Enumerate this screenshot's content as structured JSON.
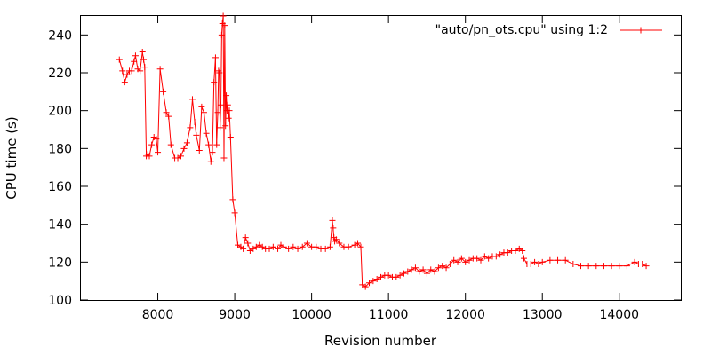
{
  "chart_data": {
    "type": "line",
    "title": "",
    "xlabel": "Revision number",
    "ylabel": "CPU time (s)",
    "xlim": [
      7000,
      14800
    ],
    "ylim": [
      100,
      250
    ],
    "xticks": [
      8000,
      9000,
      10000,
      11000,
      12000,
      13000,
      14000
    ],
    "yticks": [
      100,
      120,
      140,
      160,
      180,
      200,
      220,
      240
    ],
    "grid": false,
    "legend_position": "top-right",
    "series": [
      {
        "name": "\"auto/pn_ots.cpu\" using 1:2",
        "color": "#ff0000",
        "marker": "plus",
        "points": [
          [
            7500,
            227
          ],
          [
            7540,
            221
          ],
          [
            7570,
            215
          ],
          [
            7600,
            219
          ],
          [
            7630,
            221
          ],
          [
            7660,
            221
          ],
          [
            7690,
            226
          ],
          [
            7710,
            229
          ],
          [
            7740,
            222
          ],
          [
            7770,
            221
          ],
          [
            7800,
            231
          ],
          [
            7815,
            227
          ],
          [
            7830,
            223
          ],
          [
            7850,
            176
          ],
          [
            7870,
            177
          ],
          [
            7890,
            176
          ],
          [
            7920,
            182
          ],
          [
            7950,
            186
          ],
          [
            7980,
            185
          ],
          [
            8000,
            178
          ],
          [
            8030,
            222
          ],
          [
            8070,
            210
          ],
          [
            8110,
            199
          ],
          [
            8140,
            197
          ],
          [
            8170,
            182
          ],
          [
            8220,
            175
          ],
          [
            8260,
            175
          ],
          [
            8300,
            176
          ],
          [
            8340,
            180
          ],
          [
            8380,
            183
          ],
          [
            8420,
            191
          ],
          [
            8450,
            206
          ],
          [
            8480,
            194
          ],
          [
            8500,
            187
          ],
          [
            8540,
            179
          ],
          [
            8570,
            202
          ],
          [
            8600,
            199
          ],
          [
            8630,
            188
          ],
          [
            8660,
            182
          ],
          [
            8690,
            173
          ],
          [
            8710,
            178
          ],
          [
            8730,
            215
          ],
          [
            8750,
            228
          ],
          [
            8765,
            182
          ],
          [
            8780,
            199
          ],
          [
            8790,
            221
          ],
          [
            8800,
            220
          ],
          [
            8810,
            191
          ],
          [
            8820,
            203
          ],
          [
            8830,
            240
          ],
          [
            8840,
            246
          ],
          [
            8850,
            250
          ],
          [
            8860,
            175
          ],
          [
            8870,
            245
          ],
          [
            8880,
            192
          ],
          [
            8890,
            208
          ],
          [
            8900,
            200
          ],
          [
            8910,
            203
          ],
          [
            8920,
            196
          ],
          [
            8930,
            200
          ],
          [
            8945,
            186
          ],
          [
            8975,
            153
          ],
          [
            9000,
            146
          ],
          [
            9040,
            129
          ],
          [
            9080,
            128
          ],
          [
            9110,
            127
          ],
          [
            9140,
            133
          ],
          [
            9170,
            130
          ],
          [
            9200,
            126
          ],
          [
            9240,
            127
          ],
          [
            9280,
            128
          ],
          [
            9320,
            129
          ],
          [
            9360,
            128
          ],
          [
            9400,
            127
          ],
          [
            9450,
            127
          ],
          [
            9500,
            128
          ],
          [
            9560,
            127
          ],
          [
            9600,
            129
          ],
          [
            9640,
            128
          ],
          [
            9700,
            127
          ],
          [
            9760,
            128
          ],
          [
            9820,
            127
          ],
          [
            9880,
            128
          ],
          [
            9940,
            130
          ],
          [
            10000,
            128
          ],
          [
            10060,
            128
          ],
          [
            10120,
            127
          ],
          [
            10180,
            127
          ],
          [
            10240,
            128
          ],
          [
            10270,
            142
          ],
          [
            10280,
            138
          ],
          [
            10290,
            133
          ],
          [
            10300,
            131
          ],
          [
            10320,
            132
          ],
          [
            10360,
            130
          ],
          [
            10420,
            128
          ],
          [
            10480,
            128
          ],
          [
            10560,
            129
          ],
          [
            10600,
            130
          ],
          [
            10640,
            128
          ],
          [
            10660,
            108
          ],
          [
            10700,
            107
          ],
          [
            10750,
            109
          ],
          [
            10800,
            110
          ],
          [
            10850,
            111
          ],
          [
            10900,
            112
          ],
          [
            10950,
            113
          ],
          [
            11000,
            113
          ],
          [
            11050,
            112
          ],
          [
            11100,
            112
          ],
          [
            11150,
            113
          ],
          [
            11200,
            114
          ],
          [
            11250,
            115
          ],
          [
            11300,
            116
          ],
          [
            11350,
            117
          ],
          [
            11400,
            115
          ],
          [
            11450,
            116
          ],
          [
            11500,
            114
          ],
          [
            11550,
            116
          ],
          [
            11600,
            115
          ],
          [
            11650,
            117
          ],
          [
            11700,
            118
          ],
          [
            11750,
            117
          ],
          [
            11800,
            119
          ],
          [
            11850,
            121
          ],
          [
            11900,
            120
          ],
          [
            11950,
            122
          ],
          [
            12000,
            120
          ],
          [
            12050,
            121
          ],
          [
            12100,
            122
          ],
          [
            12150,
            122
          ],
          [
            12200,
            121
          ],
          [
            12250,
            123
          ],
          [
            12300,
            122
          ],
          [
            12350,
            123
          ],
          [
            12400,
            123
          ],
          [
            12450,
            124
          ],
          [
            12500,
            125
          ],
          [
            12550,
            125
          ],
          [
            12600,
            126
          ],
          [
            12650,
            126
          ],
          [
            12700,
            127
          ],
          [
            12740,
            126
          ],
          [
            12760,
            122
          ],
          [
            12800,
            119
          ],
          [
            12850,
            119
          ],
          [
            12900,
            120
          ],
          [
            12950,
            119
          ],
          [
            13000,
            120
          ],
          [
            13100,
            121
          ],
          [
            13200,
            121
          ],
          [
            13300,
            121
          ],
          [
            13400,
            119
          ],
          [
            13500,
            118
          ],
          [
            13600,
            118
          ],
          [
            13700,
            118
          ],
          [
            13800,
            118
          ],
          [
            13900,
            118
          ],
          [
            14000,
            118
          ],
          [
            14100,
            118
          ],
          [
            14200,
            120
          ],
          [
            14250,
            119
          ],
          [
            14300,
            119
          ],
          [
            14350,
            118
          ]
        ]
      }
    ]
  }
}
